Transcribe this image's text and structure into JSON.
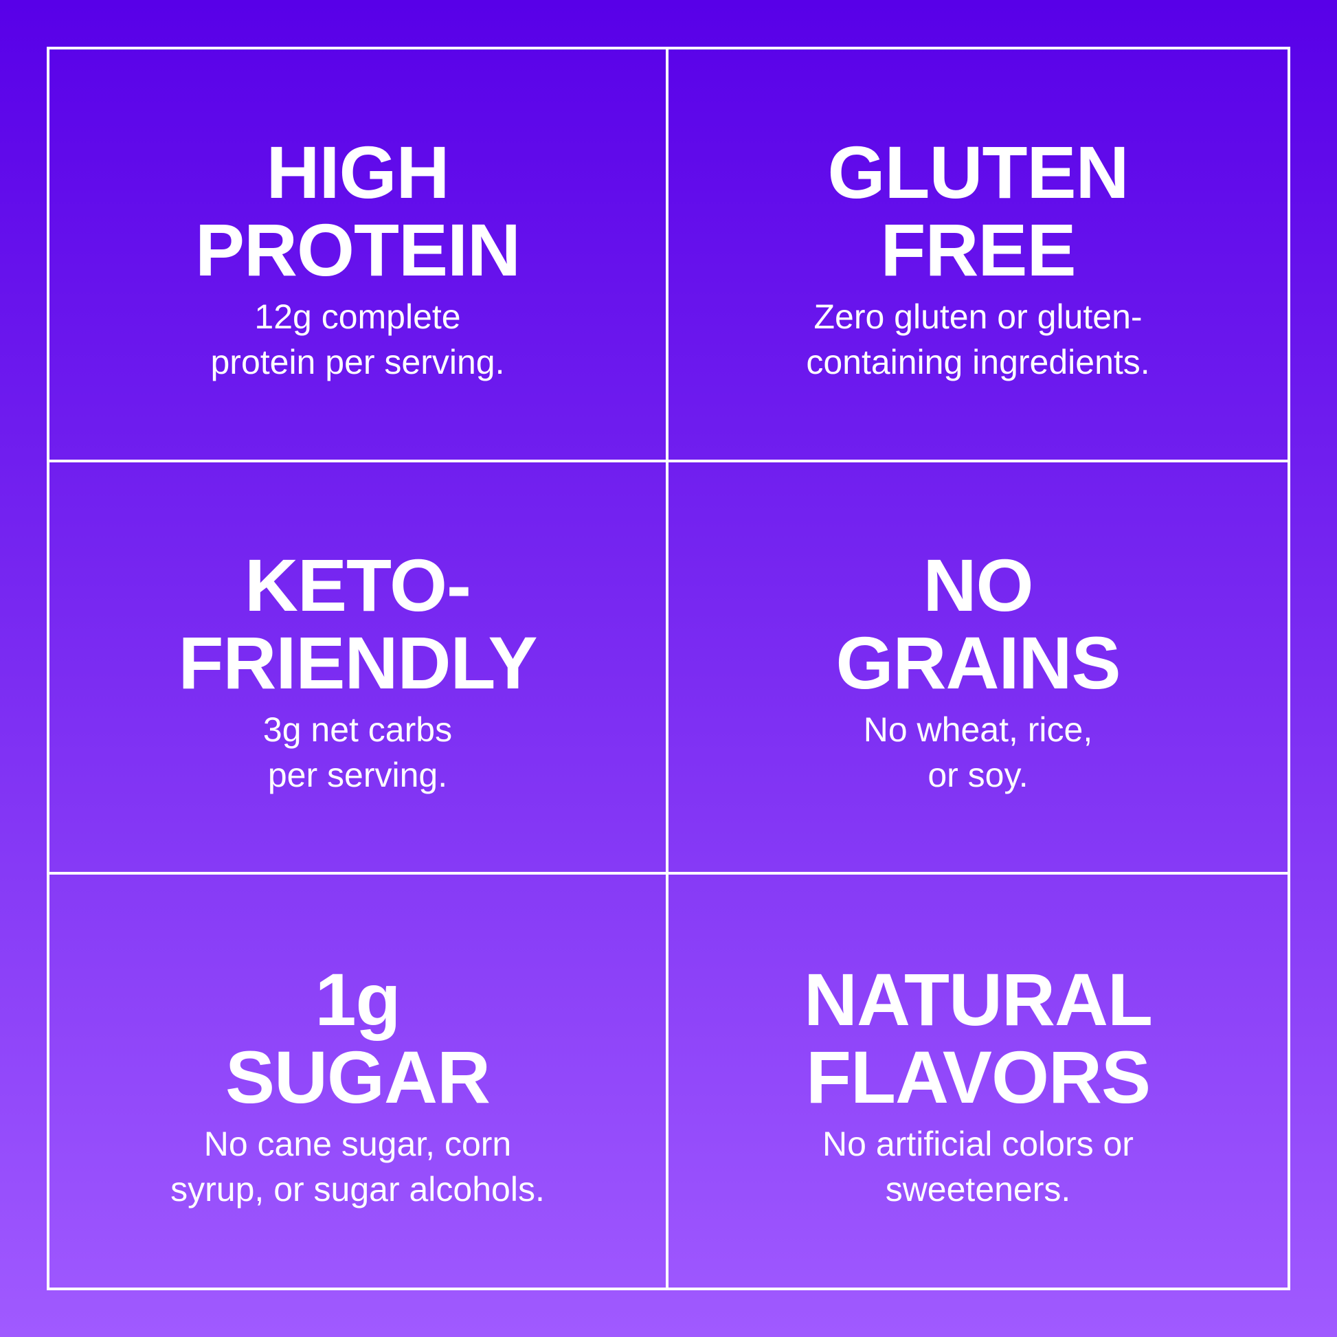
{
  "colors": {
    "top": "#5800e8",
    "bottom": "#a05aff",
    "lines": "#ffffff"
  },
  "cells": [
    {
      "title": [
        "HIGH",
        "PROTEIN"
      ],
      "desc": [
        "12g complete",
        "protein per serving."
      ]
    },
    {
      "title": [
        "GLUTEN",
        "FREE"
      ],
      "desc": [
        "Zero gluten or gluten-",
        "containing ingredients."
      ]
    },
    {
      "title": [
        "KETO-",
        "FRIENDLY"
      ],
      "desc": [
        "3g net carbs",
        "per serving."
      ]
    },
    {
      "title": [
        "NO",
        "GRAINS"
      ],
      "desc": [
        "No wheat, rice,",
        "or soy."
      ]
    },
    {
      "title": [
        "1g",
        "SUGAR"
      ],
      "desc": [
        "No cane sugar, corn",
        "syrup, or sugar alcohols."
      ]
    },
    {
      "title": [
        "NATURAL",
        "FLAVORS"
      ],
      "desc": [
        "No artificial colors or",
        "sweeteners."
      ]
    }
  ]
}
